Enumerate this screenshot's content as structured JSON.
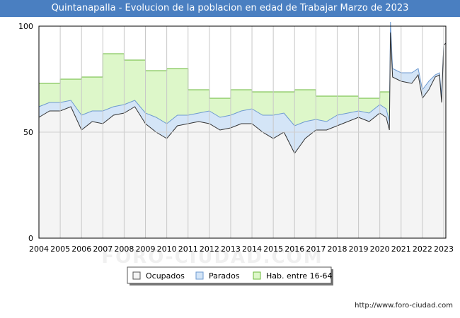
{
  "header": {
    "title": "Quintanapalla - Evolucion de la poblacion en edad de Trabajar Marzo de 2023"
  },
  "footer": {
    "url": "http://www.foro-ciudad.com"
  },
  "watermark": "FORO-CIUDAD.COM",
  "colors": {
    "title_bg": "#4a7fc1",
    "hab_fill": "#ddf7c9",
    "hab_line": "#6aba3a",
    "parados_fill": "#d4e5f7",
    "parados_line": "#6e9ad0",
    "ocupados_fill": "#f4f4f4",
    "ocupados_line": "#333333"
  },
  "chart_data": {
    "type": "area",
    "title": "Quintanapalla - Evolucion de la poblacion en edad de Trabajar Marzo de 2023",
    "xlabel": "",
    "ylabel": "",
    "xlim": [
      2004.0,
      2023.1
    ],
    "ylim": [
      0,
      100
    ],
    "yticks": [
      0,
      50,
      100
    ],
    "xticks": [
      "2004",
      "2005",
      "2006",
      "2007",
      "2008",
      "2009",
      "2010",
      "2011",
      "2012",
      "2013",
      "2014",
      "2015",
      "2016",
      "2017",
      "2018",
      "2019",
      "2020",
      "2021",
      "2022",
      "2023"
    ],
    "grid": true,
    "legend": {
      "position": "bottom",
      "entries": [
        "Ocupados",
        "Parados",
        "Hab. entre 16-64"
      ]
    },
    "series": [
      {
        "name": "Hab. entre 16-64",
        "kind": "step",
        "x": [
          2004,
          2005,
          2006,
          2007,
          2008,
          2009,
          2010,
          2011,
          2012,
          2013,
          2014,
          2015,
          2016,
          2017,
          2018,
          2019,
          2020,
          2020.4,
          2020.5
        ],
        "y": [
          73,
          75,
          76,
          87,
          84,
          79,
          80,
          70,
          66,
          70,
          69,
          69,
          70,
          67,
          67,
          66,
          69,
          69,
          69
        ]
      },
      {
        "name": "Parados",
        "kind": "line",
        "x": [
          2004,
          2004.5,
          2005,
          2005.5,
          2006,
          2006.5,
          2007,
          2007.5,
          2008,
          2008.5,
          2009,
          2009.5,
          2010,
          2010.5,
          2011,
          2011.5,
          2012,
          2012.5,
          2013,
          2013.5,
          2014,
          2014.5,
          2015,
          2015.5,
          2016,
          2016.5,
          2017,
          2017.5,
          2018,
          2018.5,
          2019,
          2019.5,
          2020,
          2020.3,
          2020.45,
          2020.5,
          2020.6,
          2021,
          2021.5,
          2021.8,
          2022,
          2022.3,
          2022.6,
          2022.8,
          2022.9,
          2023,
          2023.1
        ],
        "y": [
          62,
          64,
          64,
          65,
          58,
          60,
          60,
          62,
          63,
          65,
          59,
          57,
          54,
          58,
          58,
          59,
          60,
          57,
          58,
          60,
          61,
          58,
          58,
          59,
          53,
          55,
          56,
          55,
          58,
          59,
          60,
          59,
          63,
          61,
          55,
          102,
          80,
          78,
          78,
          80,
          70,
          74,
          77,
          78,
          67,
          91,
          92
        ]
      },
      {
        "name": "Ocupados",
        "kind": "line",
        "x": [
          2004,
          2004.5,
          2005,
          2005.5,
          2006,
          2006.5,
          2007,
          2007.5,
          2008,
          2008.5,
          2009,
          2009.5,
          2010,
          2010.5,
          2011,
          2011.5,
          2012,
          2012.5,
          2013,
          2013.5,
          2014,
          2014.5,
          2015,
          2015.5,
          2016,
          2016.5,
          2017,
          2017.5,
          2018,
          2018.5,
          2019,
          2019.5,
          2020,
          2020.3,
          2020.45,
          2020.5,
          2020.6,
          2021,
          2021.5,
          2021.8,
          2022,
          2022.3,
          2022.6,
          2022.8,
          2022.9,
          2023,
          2023.1
        ],
        "y": [
          57,
          60,
          60,
          62,
          51,
          55,
          54,
          58,
          59,
          62,
          54,
          50,
          47,
          53,
          54,
          55,
          54,
          51,
          52,
          54,
          54,
          50,
          47,
          50,
          40,
          47,
          51,
          51,
          53,
          55,
          57,
          55,
          59,
          57,
          51,
          97,
          76,
          74,
          73,
          77,
          66,
          70,
          76,
          77,
          64,
          91,
          92
        ]
      }
    ]
  }
}
